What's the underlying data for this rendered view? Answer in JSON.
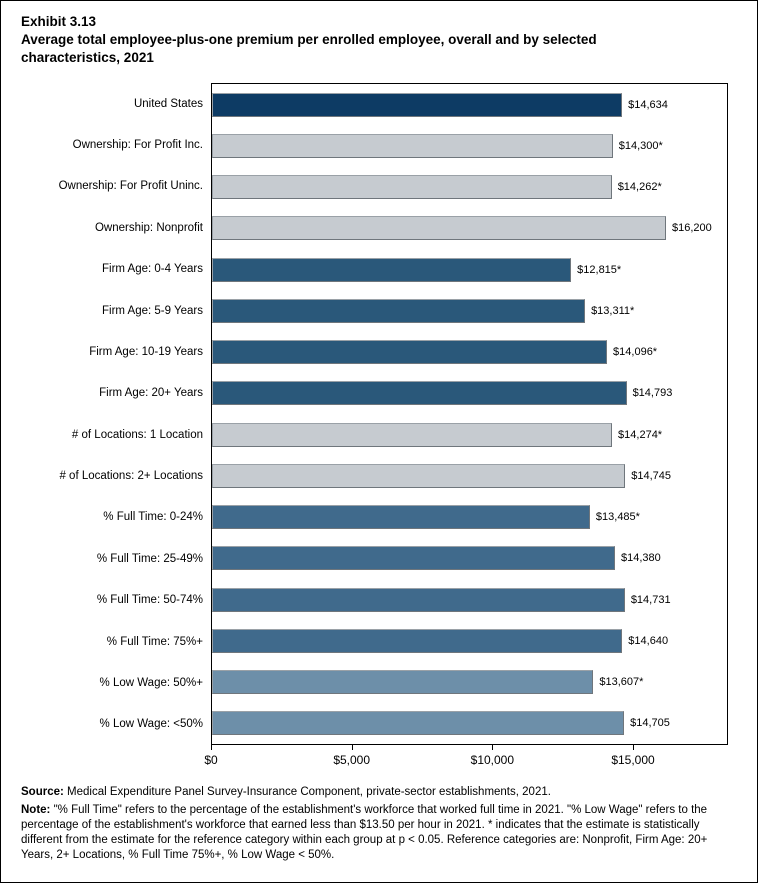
{
  "header": {
    "exhibit_number": "Exhibit 3.13",
    "title": "Average total employee-plus-one premium per enrolled employee, overall and by selected characteristics, 2021"
  },
  "chart_data": {
    "type": "bar",
    "orientation": "horizontal",
    "title": "Average total employee-plus-one premium per enrolled employee, overall and by selected characteristics, 2021",
    "categories": [
      "United States",
      "Ownership: For Profit Inc.",
      "Ownership: For Profit Uninc.",
      "Ownership: Nonprofit",
      "Firm Age: 0-4 Years",
      "Firm Age: 5-9 Years",
      "Firm Age: 10-19 Years",
      "Firm Age: 20+ Years",
      "# of Locations: 1 Location",
      "# of Locations: 2+ Locations",
      "% Full Time: 0-24%",
      "% Full Time: 25-49%",
      "% Full Time: 50-74%",
      "% Full Time: 75%+",
      "% Low Wage: 50%+",
      "% Low Wage: <50%"
    ],
    "values": [
      14634,
      14300,
      14262,
      16200,
      12815,
      13311,
      14096,
      14793,
      14274,
      14745,
      13485,
      14380,
      14731,
      14640,
      13607,
      14705
    ],
    "value_labels": [
      "$14,634",
      "$14,300*",
      "$14,262*",
      "$16,200",
      "$12,815*",
      "$13,311*",
      "$14,096*",
      "$14,793",
      "$14,274*",
      "$14,745",
      "$13,485*",
      "$14,380",
      "$14,731",
      "$14,640",
      "$13,607*",
      "$14,705"
    ],
    "groups": [
      "overall",
      "ownership",
      "ownership",
      "ownership",
      "firm_age",
      "firm_age",
      "firm_age",
      "firm_age",
      "locations",
      "locations",
      "full_time",
      "full_time",
      "full_time",
      "full_time",
      "low_wage",
      "low_wage"
    ],
    "group_colors": {
      "overall": "#0D3B64",
      "ownership": "#C6CBD0",
      "firm_age": "#2A587A",
      "locations": "#C6CBD0",
      "full_time": "#406A8C",
      "low_wage": "#6D8FA9"
    },
    "xlabel": "",
    "ylabel": "",
    "xlim": [
      0,
      18376
    ],
    "xticks": [
      {
        "value": 0,
        "label": "$0"
      },
      {
        "value": 5000,
        "label": "$5,000"
      },
      {
        "value": 10000,
        "label": "$10,000"
      },
      {
        "value": 15000,
        "label": "$15,000"
      }
    ],
    "grid": false,
    "legend": false
  },
  "footer": {
    "source_label": "Source:",
    "source_text": "Medical Expenditure Panel Survey-Insurance Component, private-sector establishments, 2021.",
    "note_label": "Note:",
    "note_text": "\"% Full Time\" refers to the percentage of the establishment's workforce that worked full time in 2021. \"% Low Wage\" refers to the percentage of the establishment's workforce that earned less than $13.50 per hour in 2021. * indicates that the estimate is statistically different from the estimate for the reference category within each group at p < 0.05.  Reference categories are: Nonprofit, Firm Age: 20+ Years, 2+ Locations, % Full Time 75%+, % Low Wage < 50%."
  }
}
